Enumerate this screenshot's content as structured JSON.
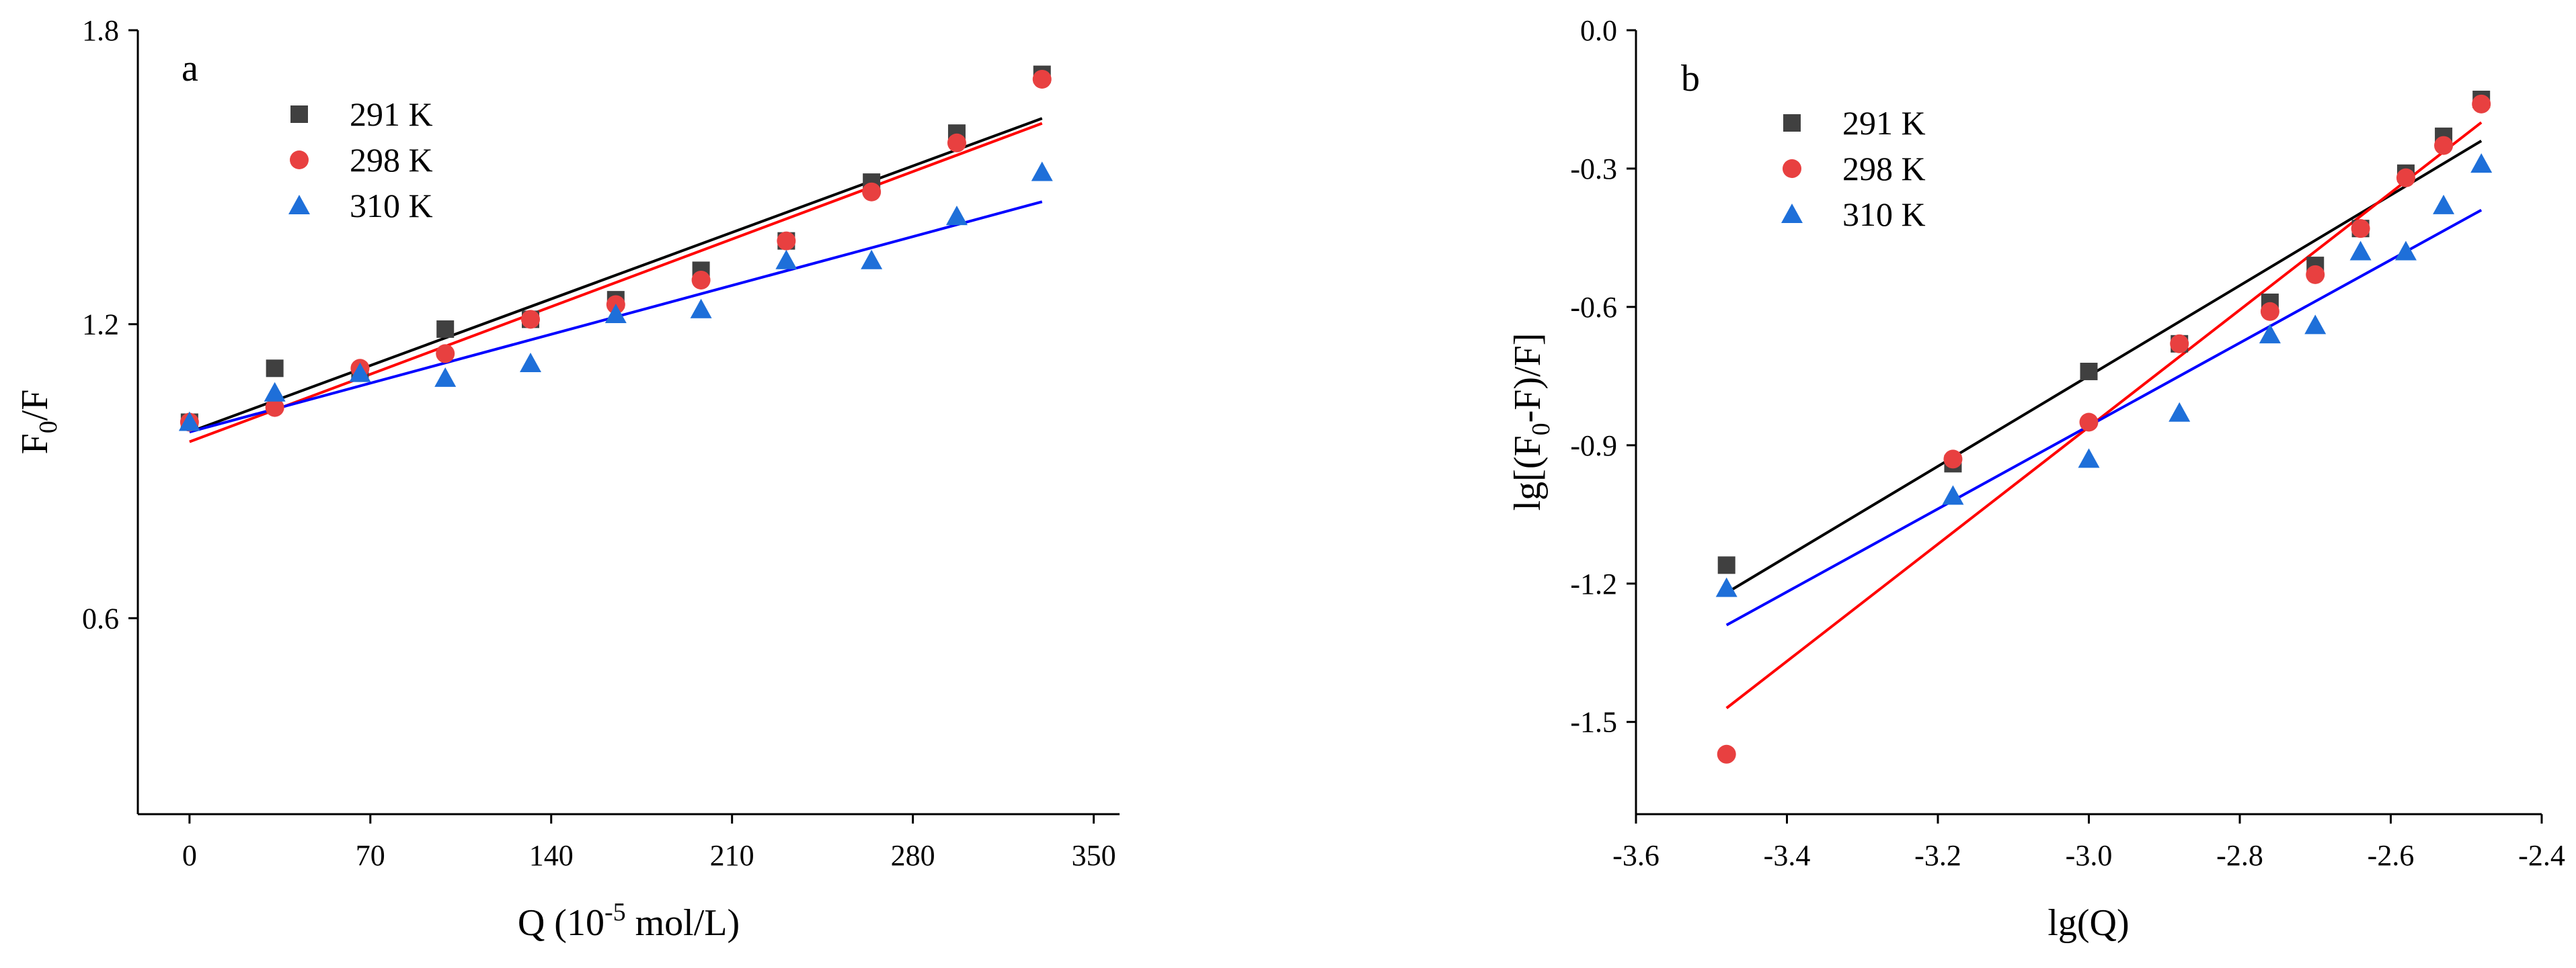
{
  "chart_data": [
    {
      "type": "scatter",
      "panel_label": "a",
      "title": "",
      "xlabel": {
        "main": "Q (10",
        "sup": "-5",
        "rest": " mol/L)"
      },
      "ylabel": {
        "main": "F",
        "sub": "0",
        "rest": "/F"
      },
      "xlim": [
        -20,
        360
      ],
      "ylim": [
        0.2,
        1.8
      ],
      "xticks": [
        0,
        70,
        140,
        210,
        280,
        350
      ],
      "xtick_labels": [
        "0",
        "70",
        "140",
        "210",
        "280",
        "350"
      ],
      "yticks": [
        0.6,
        1.2,
        1.8
      ],
      "ytick_labels": [
        "0.6",
        "1.2",
        "1.8"
      ],
      "legend_position": "top-left",
      "series": [
        {
          "name": "291 K",
          "marker": "square",
          "color": "#404040",
          "x": [
            0,
            33,
            66,
            99,
            132,
            165,
            198,
            231,
            264,
            297,
            330
          ],
          "y": [
            1.0,
            1.11,
            1.1,
            1.19,
            1.21,
            1.25,
            1.31,
            1.37,
            1.49,
            1.59,
            1.71
          ],
          "fit": {
            "color": "#000000",
            "x": [
              0,
              330
            ],
            "y": [
              0.98,
              1.62
            ]
          }
        },
        {
          "name": "298 K",
          "marker": "circle",
          "color": "#e84040",
          "x": [
            0,
            33,
            66,
            99,
            132,
            165,
            198,
            231,
            264,
            297,
            330
          ],
          "y": [
            1.0,
            1.03,
            1.11,
            1.14,
            1.21,
            1.24,
            1.29,
            1.37,
            1.47,
            1.57,
            1.7
          ],
          "fit": {
            "color": "#ff0000",
            "x": [
              0,
              330
            ],
            "y": [
              0.96,
              1.61
            ]
          }
        },
        {
          "name": "310 K",
          "marker": "triangle",
          "color": "#1e6fd9",
          "x": [
            0,
            33,
            66,
            99,
            132,
            165,
            198,
            231,
            264,
            297,
            330
          ],
          "y": [
            1.0,
            1.06,
            1.1,
            1.09,
            1.12,
            1.22,
            1.23,
            1.33,
            1.33,
            1.42,
            1.51
          ],
          "fit": {
            "color": "#0000ff",
            "x": [
              0,
              330
            ],
            "y": [
              0.98,
              1.45
            ]
          }
        }
      ]
    },
    {
      "type": "scatter",
      "panel_label": "b",
      "title": "",
      "xlabel": {
        "main": "lg(Q)",
        "sup": "",
        "rest": ""
      },
      "ylabel": {
        "main": "lg[(F",
        "sub": "0",
        "rest": "-F)/F]"
      },
      "xlim": [
        -3.6,
        -2.4
      ],
      "ylim": [
        -1.7,
        0.0
      ],
      "xticks": [
        -3.6,
        -3.4,
        -3.2,
        -3.0,
        -2.8,
        -2.6,
        -2.4
      ],
      "xtick_labels": [
        "-3.6",
        "-3.4",
        "-3.2",
        "-3.0",
        "-2.8",
        "-2.6",
        "-2.4"
      ],
      "yticks": [
        -1.5,
        -1.2,
        -0.9,
        -0.6,
        -0.3,
        0.0
      ],
      "ytick_labels": [
        "-1.5",
        "-1.2",
        "-0.9",
        "-0.6",
        "-0.3",
        "0.0"
      ],
      "legend_position": "top-left",
      "series": [
        {
          "name": "291 K",
          "marker": "square",
          "color": "#404040",
          "x": [
            -3.48,
            -3.18,
            -3.0,
            -2.88,
            -2.76,
            -2.7,
            -2.64,
            -2.58,
            -2.53,
            -2.48
          ],
          "y": [
            -1.16,
            -0.94,
            -0.74,
            -0.68,
            -0.59,
            -0.51,
            -0.43,
            -0.31,
            -0.23,
            -0.15
          ],
          "fit": {
            "color": "#000000",
            "x": [
              -3.48,
              -2.48
            ],
            "y": [
              -1.22,
              -0.24
            ]
          }
        },
        {
          "name": "298 K",
          "marker": "circle",
          "color": "#e84040",
          "x": [
            -3.48,
            -3.18,
            -3.0,
            -2.88,
            -2.76,
            -2.7,
            -2.64,
            -2.58,
            -2.53,
            -2.48
          ],
          "y": [
            -1.57,
            -0.93,
            -0.85,
            -0.68,
            -0.61,
            -0.53,
            -0.43,
            -0.32,
            -0.25,
            -0.16
          ],
          "fit": {
            "color": "#ff0000",
            "x": [
              -3.48,
              -2.48
            ],
            "y": [
              -1.47,
              -0.2
            ]
          }
        },
        {
          "name": "310 K",
          "marker": "triangle",
          "color": "#1e6fd9",
          "x": [
            -3.48,
            -3.18,
            -3.0,
            -2.88,
            -2.76,
            -2.7,
            -2.64,
            -2.58,
            -2.53,
            -2.48
          ],
          "y": [
            -1.21,
            -1.01,
            -0.93,
            -0.83,
            -0.66,
            -0.64,
            -0.48,
            -0.48,
            -0.38,
            -0.29
          ],
          "fit": {
            "color": "#0000ff",
            "x": [
              -3.48,
              -2.48
            ],
            "y": [
              -1.29,
              -0.39
            ]
          }
        }
      ]
    }
  ]
}
